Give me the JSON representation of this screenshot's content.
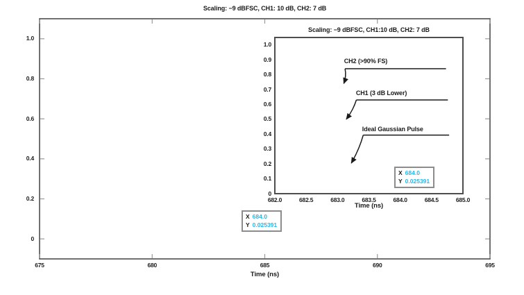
{
  "colors": {
    "value_cyan": "#29b7e8",
    "spine_gray": "#4d4d4d",
    "tick_gray": "#999999",
    "text_black": "#1a1a1a",
    "cursor_border": "#8c8c8c"
  },
  "chart_data": [
    {
      "id": "main",
      "type": "line",
      "title": "Scaling: −9 dBFSC, CH1: 10 dB, CH2: 7 dB",
      "xlabel": "Time (ns)",
      "ylabel": "",
      "xlim": [
        675,
        695
      ],
      "ylim": [
        -0.1,
        1.1
      ],
      "x_ticks": [
        675,
        680,
        685,
        690,
        695
      ],
      "x_tick_labels": [
        "675",
        "680",
        "685",
        "690",
        "695"
      ],
      "y_ticks": [
        0,
        0.2,
        0.4,
        0.6,
        0.8,
        1.0
      ],
      "y_tick_labels": [
        "0",
        "0.2",
        "0.4",
        "0.6",
        "0.8",
        "1.0"
      ],
      "grid": false,
      "tick_direction": "in",
      "series": [],
      "annotations": [],
      "cursor_readout": {
        "x_label": "X",
        "x_value": "684.0",
        "y_label": "Y",
        "y_value": "0.025391"
      }
    },
    {
      "id": "inset",
      "type": "line",
      "title": "Scaling: −9 dBFSC, CH1:10 dB, CH2: 7 dB",
      "xlabel": "Time (ns)",
      "ylabel": "",
      "xlim": [
        682,
        685
      ],
      "ylim": [
        0,
        1.05
      ],
      "x_ticks": [
        682.0,
        682.5,
        683.0,
        683.5,
        684.0,
        684.5,
        685.0
      ],
      "x_tick_labels": [
        "682.0",
        "682.5",
        "683.0",
        "683.5",
        "684.0",
        "684.5",
        "685.0"
      ],
      "y_ticks": [
        0,
        0.1,
        0.2,
        0.3,
        0.4,
        0.5,
        0.6,
        0.7,
        0.8,
        0.9,
        1.0
      ],
      "y_tick_labels": [
        "0",
        "0.1",
        "0.2",
        "0.3",
        "0.4",
        "0.5",
        "0.6",
        "0.7",
        "0.8",
        "0.9",
        "1.0"
      ],
      "grid": false,
      "tick_direction": "none",
      "series": [],
      "annotations": [
        {
          "label": "CH2 (>90% FS)",
          "text_x": 683.45,
          "text_y": 0.89,
          "line_y": 0.84,
          "line_x1": 683.12,
          "line_x2": 684.73,
          "arrow_tip_x": 683.1,
          "arrow_tip_y": 0.74
        },
        {
          "label": "CH1 (3 dB Lower)",
          "text_x": 683.7,
          "text_y": 0.675,
          "line_y": 0.63,
          "line_x1": 683.3,
          "line_x2": 684.76,
          "arrow_tip_x": 683.14,
          "arrow_tip_y": 0.5
        },
        {
          "label": "Ideal Gaussian Pulse",
          "text_x": 683.88,
          "text_y": 0.435,
          "line_y": 0.394,
          "line_x1": 683.41,
          "line_x2": 684.78,
          "arrow_tip_x": 683.22,
          "arrow_tip_y": 0.205
        }
      ],
      "cursor_readout": {
        "x_label": "X",
        "x_value": "684.0",
        "y_label": "Y",
        "y_value": "0.025391"
      }
    }
  ]
}
